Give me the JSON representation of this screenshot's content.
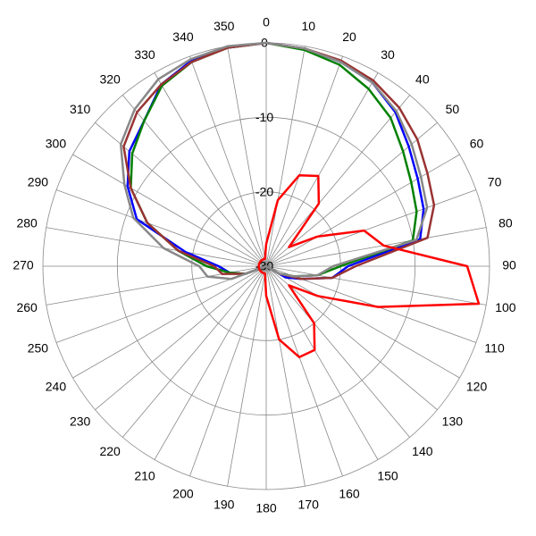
{
  "chart_data": {
    "type": "polar",
    "theta": [
      0,
      10,
      20,
      30,
      40,
      50,
      60,
      70,
      80,
      90,
      100,
      110,
      120,
      130,
      140,
      150,
      160,
      170,
      180,
      190,
      200,
      210,
      220,
      230,
      240,
      250,
      260,
      270,
      280,
      290,
      300,
      310,
      320,
      330,
      340,
      350
    ],
    "rlim": [
      -30,
      0
    ],
    "rticks": [
      -30,
      -20,
      -10,
      0
    ],
    "grid": true,
    "series": [
      {
        "color": "#0000ff",
        "values": [
          0,
          -0.3,
          -0.8,
          -1.5,
          -3,
          -5,
          -6.5,
          -7.5,
          -9,
          -19,
          -21,
          -25,
          -27,
          -30,
          -30,
          -30,
          -30,
          -30,
          -30,
          -30,
          -30,
          -30,
          -30,
          -30,
          -30,
          -27,
          -25,
          -23.6,
          -19,
          -11.5,
          -8.5,
          -6,
          -4.5,
          -1.8,
          -0.6,
          -0.2
        ]
      },
      {
        "color": "#008000",
        "values": [
          0,
          -0.5,
          -1.2,
          -2.5,
          -4,
          -6,
          -7.5,
          -8.5,
          -10,
          -20,
          -23,
          -26,
          -28,
          -30,
          -30,
          -30,
          -30,
          -30,
          -30,
          -30,
          -30,
          -30,
          -30,
          -30,
          -30,
          -27,
          -25,
          -22,
          -18,
          -13,
          -9,
          -6.5,
          -4.5,
          -2,
          -0.8,
          -0.2
        ]
      },
      {
        "color": "#993333",
        "values": [
          0,
          -0.3,
          -0.6,
          -1.2,
          -2.2,
          -3.5,
          -5,
          -6,
          -8,
          -18,
          -21,
          -25,
          -28,
          -30,
          -30,
          -30,
          -30,
          -30,
          -30,
          -30,
          -30,
          -30,
          -30,
          -30,
          -30,
          -27,
          -24,
          -23,
          -18,
          -13,
          -9,
          -5,
          -3,
          -1.8,
          -0.8,
          -0.2
        ]
      },
      {
        "color": "#888888",
        "values": [
          0,
          -0.3,
          -0.8,
          -1.5,
          -2.8,
          -4.5,
          -6,
          -7,
          -9.5,
          -21,
          -23,
          -26,
          -28,
          -30,
          -30,
          -30,
          -30,
          -30,
          -30,
          -30,
          -30,
          -30,
          -30,
          -30,
          -30,
          -25,
          -22,
          -21,
          -16,
          -11,
          -8,
          -4.5,
          -2.5,
          -1,
          -0.4,
          0
        ]
      },
      {
        "color": "#ff0000",
        "values": [
          -27,
          -21,
          -17,
          -16,
          -19,
          -26,
          -22,
          -16,
          -14,
          -3,
          -1,
          -14,
          -22,
          -26,
          -20,
          -17,
          -17,
          -20,
          -26,
          -29,
          -29,
          -29,
          -29,
          -29,
          -29,
          -29,
          -29,
          -29,
          -29,
          -29,
          -29,
          -29,
          -29,
          -29,
          -29,
          -29
        ]
      }
    ]
  }
}
